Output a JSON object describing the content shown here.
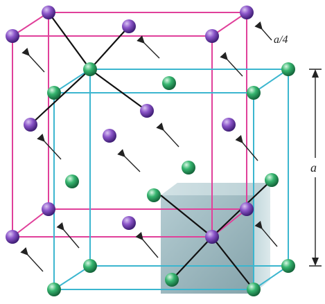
{
  "diagram": {
    "labels": {
      "shift": "a/4",
      "edge": "a"
    },
    "colors": {
      "purple_lattice": "#e0409a",
      "green_lattice": "#3bb6cf",
      "bond": "#111111",
      "arrow": "#222222",
      "purple_atom": "#7a45b8",
      "green_atom": "#2fae6a",
      "highlight_cube": "#8fb3bd"
    }
  }
}
